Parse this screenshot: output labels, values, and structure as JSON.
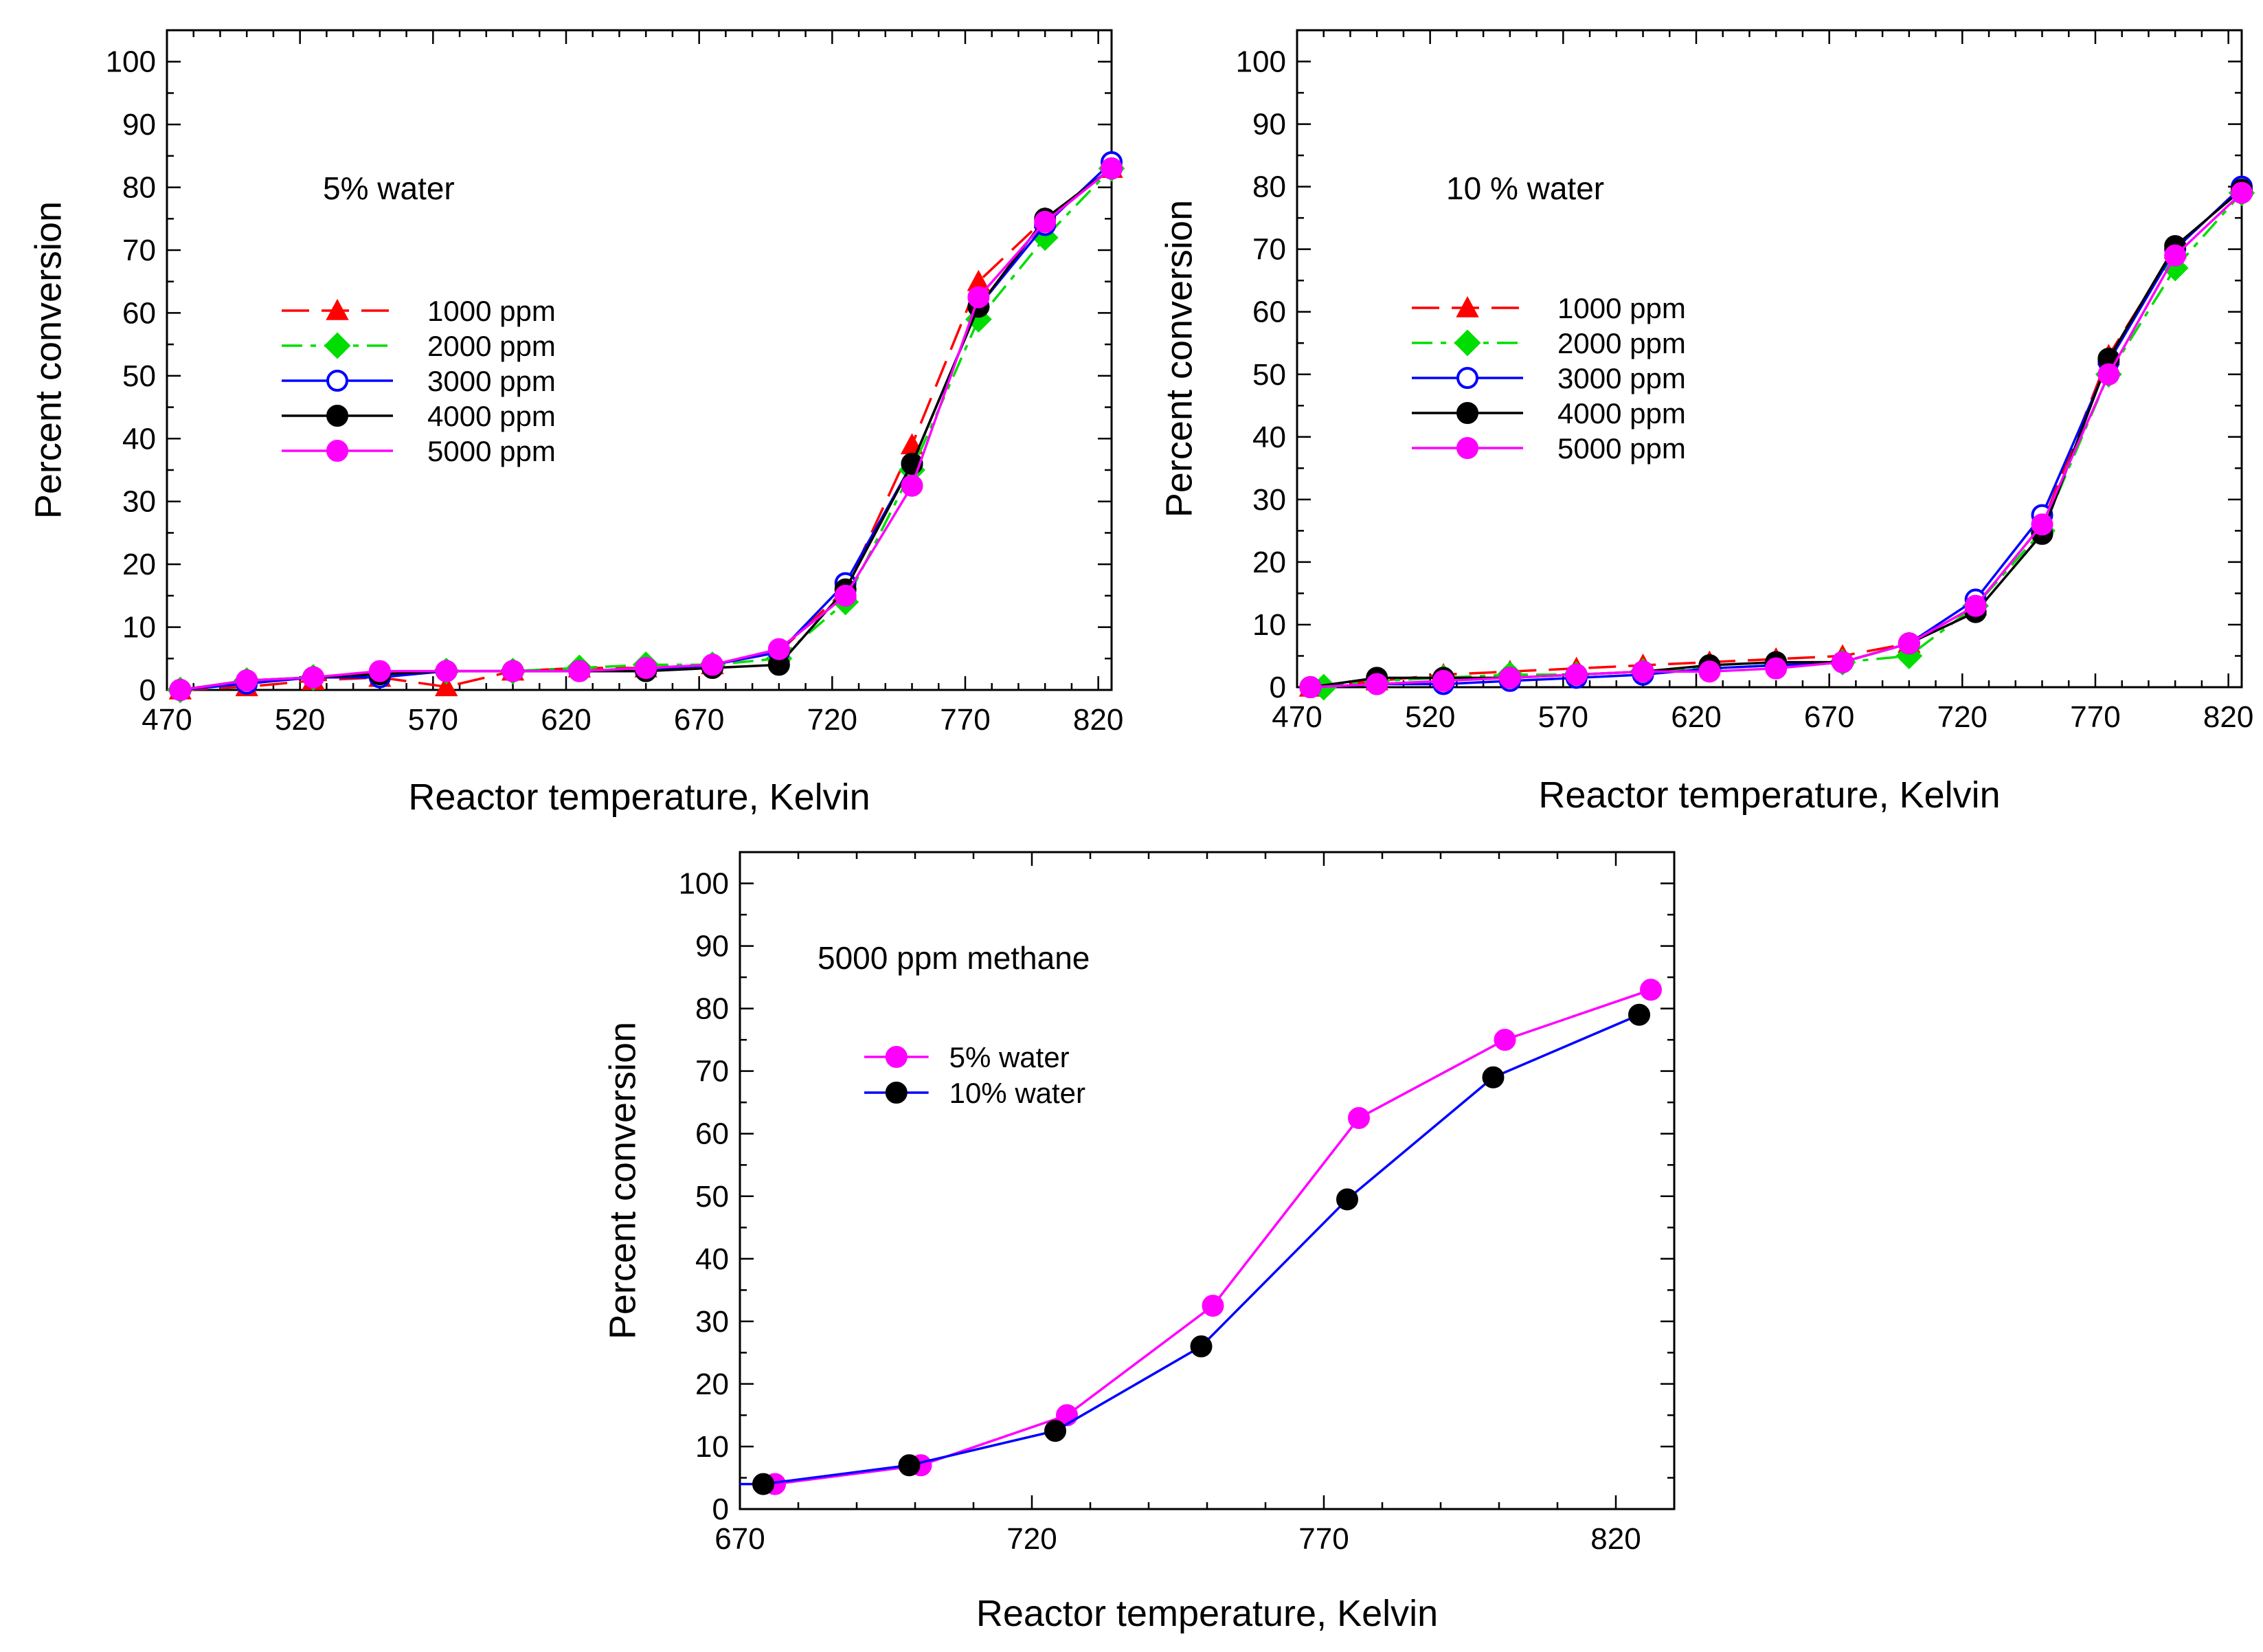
{
  "chart_data": [
    {
      "type": "line",
      "annotation": "5% water",
      "xlabel": "Reactor temperature, Kelvin",
      "ylabel": "Percent conversion",
      "xlim": [
        470,
        825
      ],
      "ylim": [
        0,
        105
      ],
      "xticks": [
        470,
        520,
        570,
        620,
        670,
        720,
        770,
        820
      ],
      "yticks": [
        0,
        10,
        20,
        30,
        40,
        50,
        60,
        70,
        80,
        90,
        100
      ],
      "legend_position": "center-left",
      "series": [
        {
          "name": "1000 ppm",
          "color": "#ff0000",
          "marker": "triangle",
          "dash": "dashed",
          "x": [
            475,
            500,
            525,
            550,
            575,
            600,
            625,
            650,
            675,
            700,
            725,
            750,
            775,
            800,
            825
          ],
          "y": [
            0,
            0.5,
            1.5,
            2,
            0.5,
            3,
            3.5,
            3.5,
            4,
            6,
            16,
            39,
            65,
            75,
            83
          ]
        },
        {
          "name": "2000 ppm",
          "color": "#00dd00",
          "marker": "diamond",
          "dash": "dashdot",
          "x": [
            475,
            500,
            525,
            550,
            575,
            600,
            625,
            650,
            675,
            700,
            725,
            750,
            775,
            800,
            825
          ],
          "y": [
            0,
            1.5,
            2,
            2.5,
            3,
            3,
            3.5,
            4,
            4,
            5,
            14,
            35,
            59,
            72,
            83
          ]
        },
        {
          "name": "3000 ppm",
          "color": "#0000ff",
          "marker": "circle-open",
          "dash": "solid",
          "x": [
            475,
            500,
            525,
            550,
            575,
            600,
            625,
            650,
            675,
            700,
            725,
            750,
            775,
            800,
            825
          ],
          "y": [
            0,
            1,
            2,
            2,
            3,
            3,
            3,
            3,
            4,
            6,
            17,
            36,
            61,
            74,
            84
          ]
        },
        {
          "name": "4000 ppm",
          "color": "#000000",
          "marker": "circle-filled",
          "dash": "solid",
          "x": [
            475,
            500,
            525,
            550,
            575,
            600,
            625,
            650,
            675,
            700,
            725,
            750,
            775,
            800,
            825
          ],
          "y": [
            0,
            1.5,
            2,
            2.5,
            3,
            3,
            3,
            3,
            3.5,
            4,
            16,
            36,
            61,
            75,
            83
          ]
        },
        {
          "name": "5000 ppm",
          "color": "#ff00ff",
          "marker": "circle-filled",
          "dash": "solid",
          "x": [
            475,
            500,
            525,
            550,
            575,
            600,
            625,
            650,
            675,
            700,
            725,
            750,
            775,
            800,
            825
          ],
          "y": [
            0,
            1.5,
            2,
            3,
            3,
            3,
            3,
            3.5,
            4,
            6.5,
            15,
            32.5,
            62.5,
            74.5,
            83
          ]
        }
      ]
    },
    {
      "type": "line",
      "annotation": "10 % water",
      "xlabel": "Reactor temperature, Kelvin",
      "ylabel": "Percent conversion",
      "xlim": [
        470,
        825
      ],
      "ylim": [
        0,
        105
      ],
      "xticks": [
        470,
        520,
        570,
        620,
        670,
        720,
        770,
        820
      ],
      "yticks": [
        0,
        10,
        20,
        30,
        40,
        50,
        60,
        70,
        80,
        90,
        100
      ],
      "legend_position": "center-left",
      "series": [
        {
          "name": "1000 ppm",
          "color": "#ff0000",
          "marker": "triangle",
          "dash": "dashed",
          "x": [
            475,
            500,
            525,
            550,
            575,
            600,
            625,
            650,
            675,
            700,
            725,
            750,
            775,
            800,
            825
          ],
          "y": [
            0,
            1,
            2,
            2.5,
            3,
            3.5,
            4,
            4.5,
            5,
            7,
            13,
            26,
            53,
            70,
            80
          ]
        },
        {
          "name": "2000 ppm",
          "color": "#00dd00",
          "marker": "diamond",
          "dash": "dashdot",
          "x": [
            480,
            500,
            525,
            550,
            575,
            600,
            625,
            650,
            675,
            700,
            725,
            750,
            775,
            800,
            825
          ],
          "y": [
            0,
            1,
            1.5,
            2,
            2,
            2.5,
            3,
            3.5,
            4,
            5,
            13,
            25,
            50,
            67,
            79
          ]
        },
        {
          "name": "3000 ppm",
          "color": "#0000ff",
          "marker": "circle-open",
          "dash": "solid",
          "x": [
            475,
            500,
            525,
            550,
            575,
            600,
            625,
            650,
            675,
            700,
            725,
            750,
            775,
            800,
            825
          ],
          "y": [
            0,
            0.5,
            0.5,
            1,
            1.5,
            2,
            3,
            3.5,
            4,
            7,
            14,
            27.5,
            52,
            70,
            80
          ]
        },
        {
          "name": "4000 ppm",
          "color": "#000000",
          "marker": "circle-filled",
          "dash": "solid",
          "x": [
            475,
            500,
            525,
            550,
            575,
            600,
            625,
            650,
            675,
            700,
            725,
            750,
            775,
            800,
            825
          ],
          "y": [
            0,
            1.5,
            1.5,
            1.5,
            2,
            2.5,
            3.5,
            4,
            4,
            7,
            12,
            24.5,
            52.5,
            70.5,
            79.5
          ]
        },
        {
          "name": "5000 ppm",
          "color": "#ff00ff",
          "marker": "circle-filled",
          "dash": "solid",
          "x": [
            475,
            500,
            525,
            550,
            575,
            600,
            625,
            650,
            675,
            700,
            725,
            750,
            775,
            800,
            825
          ],
          "y": [
            0,
            0.5,
            1,
            1.5,
            2,
            2.5,
            2.5,
            3,
            4,
            7,
            13,
            26,
            50,
            69,
            79
          ]
        }
      ]
    },
    {
      "type": "line",
      "annotation": "5000 ppm methane",
      "xlabel": "Reactor temperature, Kelvin",
      "ylabel": "Percent conversion",
      "xlim": [
        670,
        830
      ],
      "ylim": [
        0,
        105
      ],
      "xticks": [
        670,
        720,
        770,
        820
      ],
      "yticks": [
        0,
        10,
        20,
        30,
        40,
        50,
        60,
        70,
        80,
        90,
        100
      ],
      "legend_position": "upper-left",
      "series": [
        {
          "name": "5% water",
          "color": "#ff00ff",
          "marker": "circle-filled",
          "marker_color": "#ff00ff",
          "dash": "solid",
          "x": [
            676,
            701,
            726,
            751,
            776,
            801,
            826
          ],
          "y": [
            4,
            7,
            15,
            32.5,
            62.5,
            75,
            83
          ]
        },
        {
          "name": "10% water",
          "color": "#0000ff",
          "marker": "circle-filled",
          "marker_color": "#000000",
          "dash": "solid",
          "x": [
            670,
            674,
            699,
            724,
            749,
            774,
            799,
            824
          ],
          "y": [
            4,
            4,
            7,
            12.5,
            26,
            49.5,
            69,
            79
          ]
        }
      ]
    }
  ]
}
